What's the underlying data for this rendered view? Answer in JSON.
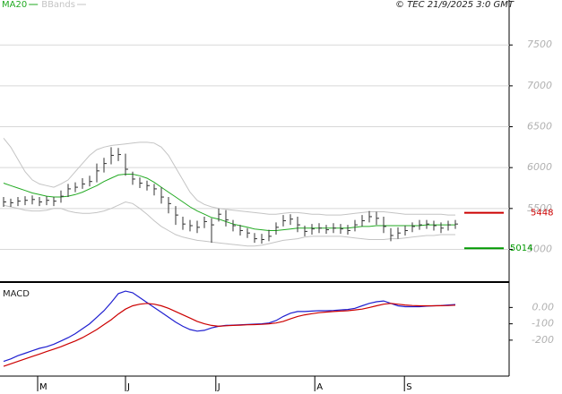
{
  "chart_data": [
    {
      "type": "ohlc",
      "source": "© TEC 21/9/2025 3:0 GMT",
      "color": "#333333",
      "high": [
        5640,
        5620,
        5640,
        5650,
        5660,
        5640,
        5650,
        5640,
        5720,
        5800,
        5820,
        5870,
        5900,
        6050,
        6120,
        6250,
        6240,
        6170,
        5950,
        5880,
        5840,
        5800,
        5760,
        5640,
        5530,
        5400,
        5360,
        5350,
        5400,
        5380,
        5500,
        5480,
        5360,
        5300,
        5260,
        5200,
        5190,
        5240,
        5330,
        5420,
        5430,
        5400,
        5290,
        5310,
        5320,
        5300,
        5320,
        5310,
        5300,
        5360,
        5420,
        5470,
        5460,
        5400,
        5260,
        5270,
        5290,
        5330,
        5360,
        5360,
        5350,
        5330,
        5350,
        5360
      ],
      "low": [
        5520,
        5520,
        5530,
        5540,
        5550,
        5530,
        5540,
        5530,
        5570,
        5640,
        5700,
        5740,
        5770,
        5820,
        5940,
        6040,
        6080,
        5900,
        5790,
        5750,
        5720,
        5660,
        5560,
        5440,
        5300,
        5240,
        5220,
        5200,
        5260,
        5080,
        5340,
        5280,
        5220,
        5170,
        5140,
        5080,
        5070,
        5100,
        5180,
        5280,
        5300,
        5210,
        5160,
        5180,
        5200,
        5190,
        5200,
        5190,
        5180,
        5220,
        5280,
        5330,
        5300,
        5200,
        5100,
        5130,
        5170,
        5210,
        5240,
        5250,
        5230,
        5200,
        5230,
        5250
      ],
      "close": [
        5580,
        5570,
        5590,
        5600,
        5610,
        5580,
        5600,
        5590,
        5650,
        5740,
        5760,
        5800,
        5830,
        5960,
        6050,
        6150,
        6160,
        5980,
        5860,
        5810,
        5780,
        5740,
        5640,
        5560,
        5420,
        5310,
        5290,
        5270,
        5340,
        5300,
        5430,
        5360,
        5290,
        5230,
        5200,
        5130,
        5120,
        5160,
        5270,
        5350,
        5370,
        5300,
        5220,
        5250,
        5260,
        5240,
        5260,
        5250,
        5230,
        5300,
        5350,
        5400,
        5380,
        5280,
        5170,
        5200,
        5230,
        5280,
        5300,
        5310,
        5290,
        5260,
        5300,
        5310
      ],
      "series": [
        {
          "name": "MA20",
          "color": "#22aa22",
          "values": [
            5810,
            5780,
            5750,
            5720,
            5690,
            5670,
            5650,
            5640,
            5640,
            5650,
            5670,
            5700,
            5740,
            5780,
            5830,
            5870,
            5910,
            5920,
            5920,
            5900,
            5870,
            5820,
            5760,
            5700,
            5640,
            5580,
            5520,
            5470,
            5430,
            5390,
            5370,
            5340,
            5310,
            5290,
            5270,
            5250,
            5240,
            5230,
            5230,
            5240,
            5250,
            5260,
            5260,
            5260,
            5260,
            5260,
            5260,
            5260,
            5260,
            5270,
            5280,
            5280,
            5290,
            5290,
            5290,
            5290,
            5290,
            5290,
            5290,
            5300,
            5300,
            5300,
            5300,
            5300
          ]
        },
        {
          "name": "BBands",
          "color": "#c4c4c4",
          "upper": [
            6360,
            6250,
            6100,
            5950,
            5850,
            5800,
            5780,
            5760,
            5800,
            5850,
            5950,
            6050,
            6150,
            6220,
            6250,
            6270,
            6280,
            6290,
            6300,
            6310,
            6310,
            6300,
            6250,
            6150,
            6000,
            5850,
            5700,
            5600,
            5550,
            5520,
            5500,
            5490,
            5480,
            5470,
            5460,
            5450,
            5440,
            5430,
            5430,
            5440,
            5450,
            5450,
            5440,
            5430,
            5430,
            5420,
            5420,
            5420,
            5430,
            5440,
            5450,
            5460,
            5460,
            5460,
            5450,
            5440,
            5430,
            5430,
            5430,
            5430,
            5430,
            5430,
            5420,
            5420
          ],
          "lower": [
            5540,
            5520,
            5500,
            5480,
            5470,
            5470,
            5480,
            5500,
            5500,
            5470,
            5450,
            5440,
            5440,
            5450,
            5470,
            5500,
            5540,
            5580,
            5560,
            5500,
            5430,
            5350,
            5280,
            5230,
            5180,
            5150,
            5130,
            5110,
            5100,
            5090,
            5080,
            5070,
            5060,
            5050,
            5040,
            5040,
            5050,
            5070,
            5090,
            5110,
            5120,
            5130,
            5150,
            5160,
            5160,
            5160,
            5160,
            5160,
            5150,
            5140,
            5130,
            5120,
            5120,
            5120,
            5130,
            5130,
            5140,
            5150,
            5160,
            5170,
            5170,
            5180,
            5180,
            5180
          ]
        }
      ],
      "annotations": [
        {
          "value": 5448,
          "color": "#cc0000"
        },
        {
          "value": 5014,
          "color": "#009900"
        }
      ],
      "ylim": [
        4600,
        8050
      ],
      "yticks": [
        5000,
        5500,
        6000,
        6500,
        7000,
        7500
      ],
      "grid": true
    },
    {
      "type": "line",
      "title": "MACD",
      "series": [
        {
          "color": "#1f1fd0",
          "values": [
            -330,
            -315,
            -295,
            -280,
            -265,
            -250,
            -240,
            -225,
            -205,
            -185,
            -160,
            -130,
            -100,
            -60,
            -20,
            30,
            85,
            100,
            90,
            60,
            30,
            0,
            -30,
            -60,
            -90,
            -115,
            -135,
            -145,
            -140,
            -125,
            -115,
            -110,
            -108,
            -106,
            -104,
            -102,
            -100,
            -95,
            -80,
            -55,
            -35,
            -25,
            -25,
            -22,
            -20,
            -20,
            -18,
            -15,
            -12,
            -5,
            10,
            25,
            35,
            40,
            25,
            10,
            5,
            5,
            5,
            8,
            10,
            12,
            15,
            18
          ]
        },
        {
          "color": "#cc0000",
          "values": [
            -360,
            -345,
            -330,
            -315,
            -300,
            -285,
            -270,
            -255,
            -240,
            -222,
            -205,
            -185,
            -160,
            -135,
            -105,
            -75,
            -40,
            -10,
            10,
            20,
            25,
            20,
            10,
            -5,
            -25,
            -45,
            -65,
            -85,
            -100,
            -110,
            -115,
            -112,
            -110,
            -108,
            -106,
            -105,
            -103,
            -100,
            -95,
            -85,
            -70,
            -55,
            -45,
            -38,
            -32,
            -28,
            -25,
            -22,
            -20,
            -15,
            -10,
            0,
            10,
            20,
            25,
            20,
            15,
            12,
            10,
            10,
            10,
            11,
            12,
            14
          ]
        }
      ],
      "ylim": [
        -420,
        150
      ],
      "yticks": [
        {
          "value": 0,
          "label": "0.00"
        },
        -100,
        -200
      ],
      "xticks": [
        {
          "value": 4.75,
          "label": "M"
        },
        {
          "value": 17,
          "label": "J"
        },
        {
          "value": 29.6,
          "label": "J"
        },
        {
          "value": 43.4,
          "label": "A"
        },
        {
          "value": 55.9,
          "label": "S"
        }
      ]
    }
  ]
}
